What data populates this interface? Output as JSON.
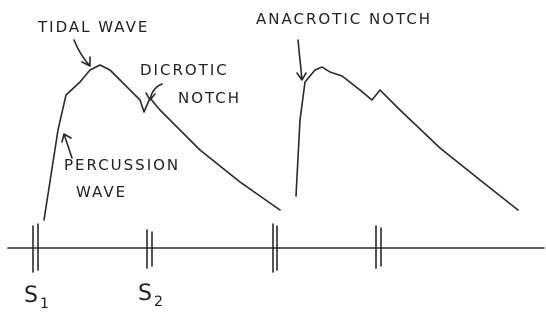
{
  "labels": {
    "tidal_wave": "TIDAL WAVE",
    "dicrotic_notch": [
      "DICROTIC",
      "NOTCH"
    ],
    "anacrotic_notch": "ANACROTIC NOTCH",
    "percussion_wave": [
      "PERCUSSION",
      "WAVE"
    ],
    "s1": {
      "text": "S",
      "sub": "1"
    },
    "s2": {
      "text": "S",
      "sub": "2"
    }
  }
}
